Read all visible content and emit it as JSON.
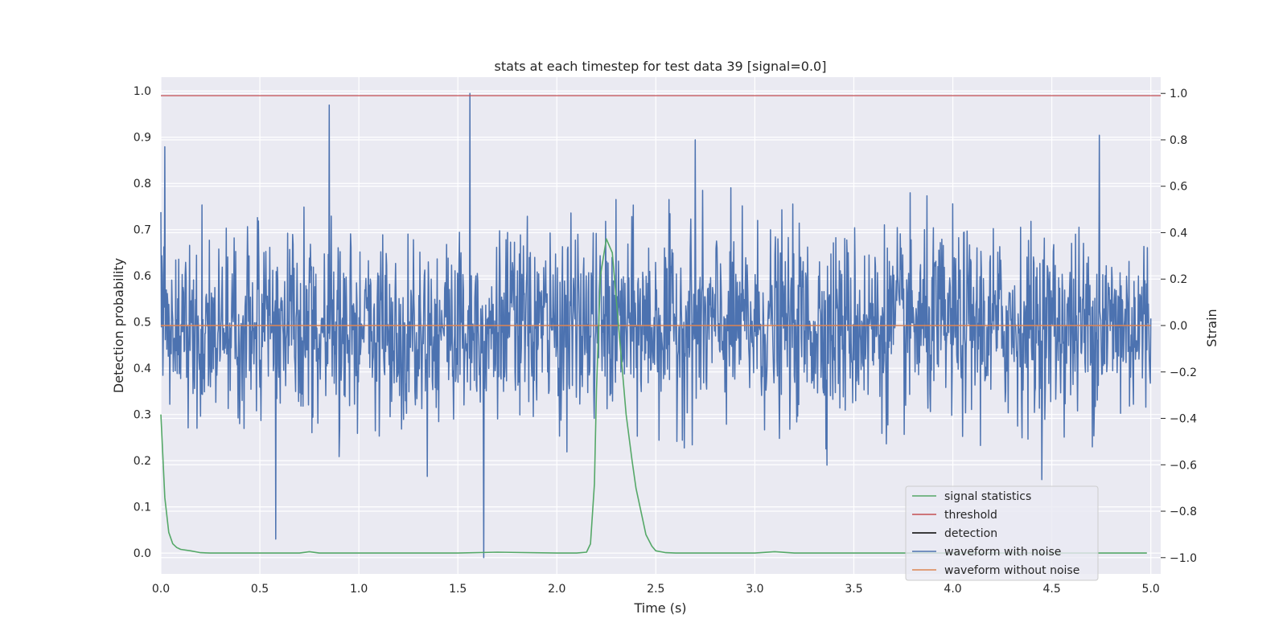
{
  "chart_data": {
    "type": "line",
    "title": "stats at each timestep for test data 39 [signal=0.0]",
    "xlabel": "Time (s)",
    "ylabel_left": "Detection probability",
    "ylabel_right": "Strain",
    "xlim": [
      0.0,
      5.05
    ],
    "ylim_left": [
      -0.045,
      1.03
    ],
    "ylim_right": [
      -1.07,
      1.07
    ],
    "x_ticks": [
      0.0,
      0.5,
      1.0,
      1.5,
      2.0,
      2.5,
      3.0,
      3.5,
      4.0,
      4.5,
      5.0
    ],
    "x_tick_labels": [
      "0.0",
      "0.5",
      "1.0",
      "1.5",
      "2.0",
      "2.5",
      "3.0",
      "3.5",
      "4.0",
      "4.5",
      "5.0"
    ],
    "y_left_ticks": [
      0.0,
      0.1,
      0.2,
      0.3,
      0.4,
      0.5,
      0.6,
      0.7,
      0.8,
      0.9,
      1.0
    ],
    "y_left_tick_labels": [
      "0.0",
      "0.1",
      "0.2",
      "0.3",
      "0.4",
      "0.5",
      "0.6",
      "0.7",
      "0.8",
      "0.9",
      "1.0"
    ],
    "y_right_ticks": [
      -1.0,
      -0.8,
      -0.6,
      -0.4,
      -0.2,
      0.0,
      0.2,
      0.4,
      0.6,
      0.8,
      1.0
    ],
    "y_right_tick_labels": [
      "−1.0",
      "−0.8",
      "−0.6",
      "−0.4",
      "−0.2",
      "0.0",
      "0.2",
      "0.4",
      "0.6",
      "0.8",
      "1.0"
    ],
    "grid": true,
    "legend_position": "lower-right",
    "colors": {
      "signal_statistics": "#55a868",
      "threshold": "#c44e52",
      "detection": "#000000",
      "waveform_with_noise": "#4c72b0",
      "waveform_without_noise": "#dd8452",
      "plot_bg": "#eaeaf2",
      "grid": "#ffffff"
    },
    "series": [
      {
        "name": "signal statistics",
        "axis": "left",
        "x": [
          0.0,
          0.02,
          0.04,
          0.06,
          0.08,
          0.1,
          0.15,
          0.2,
          0.25,
          0.5,
          0.7,
          0.75,
          0.8,
          1.0,
          1.5,
          1.7,
          2.0,
          2.1,
          2.15,
          2.17,
          2.19,
          2.2,
          2.22,
          2.25,
          2.28,
          2.3,
          2.33,
          2.35,
          2.38,
          2.4,
          2.43,
          2.45,
          2.48,
          2.5,
          2.55,
          2.6,
          3.0,
          3.1,
          3.2,
          3.5,
          4.0,
          4.5,
          4.98
        ],
        "y": [
          0.3,
          0.12,
          0.045,
          0.02,
          0.012,
          0.008,
          0.005,
          0.001,
          0.0,
          0.0,
          0.0,
          0.003,
          0.0,
          0.0,
          0.0,
          0.002,
          0.0,
          0.0,
          0.002,
          0.02,
          0.15,
          0.35,
          0.6,
          0.68,
          0.65,
          0.55,
          0.4,
          0.3,
          0.2,
          0.14,
          0.08,
          0.04,
          0.015,
          0.005,
          0.001,
          0.0,
          0.0,
          0.003,
          0.0,
          0.0,
          0.0,
          0.0,
          0.0
        ]
      },
      {
        "name": "threshold",
        "axis": "left",
        "x": [
          0.0,
          5.05
        ],
        "y": [
          0.99,
          0.99
        ]
      },
      {
        "name": "detection",
        "axis": "left",
        "x": [],
        "y": []
      },
      {
        "name": "waveform with noise",
        "axis": "right",
        "x_range": [
          0.0,
          5.0
        ],
        "n_points": 2000,
        "typical_amplitude": 0.2,
        "max": 1.0,
        "min": -1.0,
        "spikes": [
          {
            "x": 0.02,
            "y": 0.77
          },
          {
            "x": 0.85,
            "y": 0.95
          },
          {
            "x": 1.56,
            "y": 1.0
          },
          {
            "x": 1.63,
            "y": -1.0
          },
          {
            "x": 2.7,
            "y": 0.8
          },
          {
            "x": 4.74,
            "y": 0.82
          },
          {
            "x": 0.58,
            "y": -0.92
          }
        ]
      },
      {
        "name": "waveform without noise",
        "axis": "right",
        "x": [
          0.0,
          5.0
        ],
        "y": [
          0.0,
          0.0
        ]
      }
    ],
    "legend": [
      "signal statistics",
      "threshold",
      "detection",
      "waveform with noise",
      "waveform without noise"
    ]
  }
}
